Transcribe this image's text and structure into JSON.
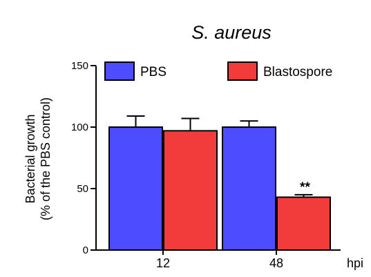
{
  "chart_data": {
    "type": "bar",
    "title": "S. aureus",
    "xlabel": "hpi",
    "ylabel_line1": "Bacterial growth",
    "ylabel_line2": "(% of the PBS control)",
    "categories": [
      "12",
      "48"
    ],
    "ylim": [
      0,
      150
    ],
    "yticks": [
      0,
      50,
      100,
      150
    ],
    "grid": false,
    "legend_position": "top",
    "series": [
      {
        "name": "PBS",
        "color": "#4d4dff",
        "values": [
          100,
          100
        ],
        "errors": [
          9,
          5
        ]
      },
      {
        "name": "Blastospore",
        "color": "#f23c3c",
        "values": [
          97,
          43
        ],
        "errors": [
          10,
          2
        ]
      }
    ],
    "annotations": [
      {
        "category": "48",
        "series": "Blastospore",
        "text": "**"
      }
    ]
  }
}
